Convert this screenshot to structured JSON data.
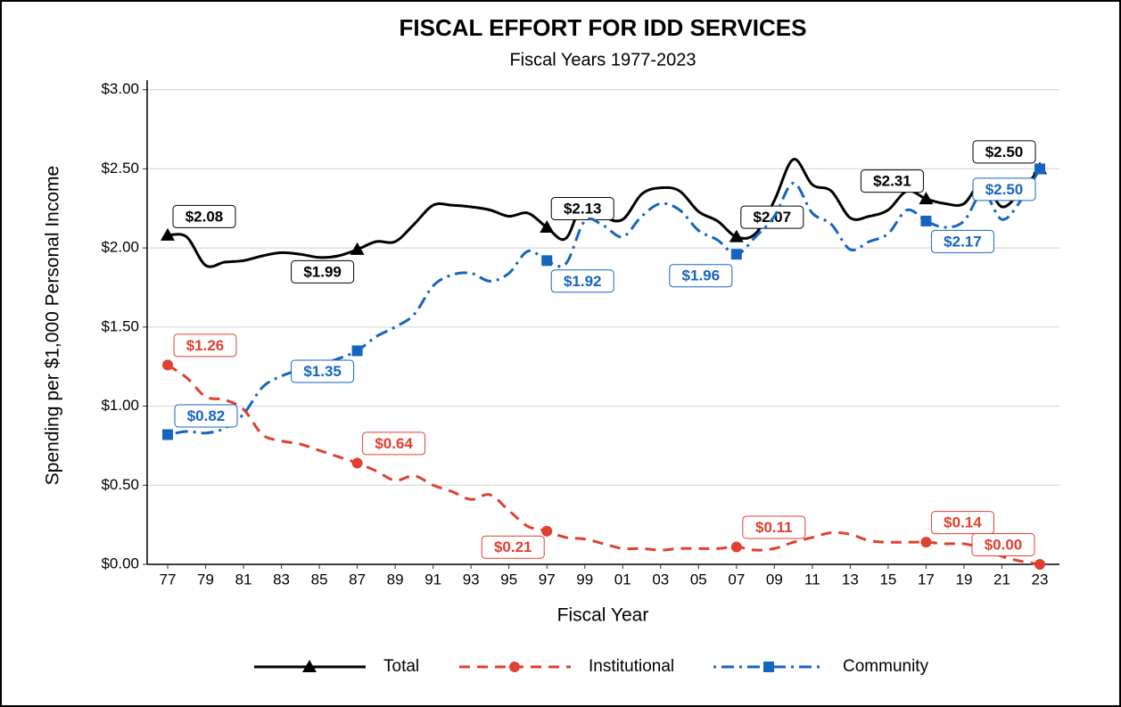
{
  "chart_data": {
    "type": "line",
    "title": "FISCAL EFFORT FOR IDD SERVICES",
    "subtitle": "Fiscal Years 1977-2023",
    "x_label": "Fiscal Year",
    "y_label": "Spending per $1,000 Personal Income",
    "categories": [
      "77",
      null,
      "79",
      null,
      "81",
      null,
      "83",
      null,
      "85",
      null,
      "87",
      null,
      "89",
      null,
      "91",
      null,
      "93",
      null,
      "95",
      null,
      "97",
      null,
      "99",
      null,
      "01",
      null,
      "03",
      null,
      "05",
      null,
      "07",
      null,
      "09",
      null,
      "11",
      null,
      "13",
      null,
      "15",
      null,
      "17",
      null,
      "19",
      null,
      "21",
      null,
      "23"
    ],
    "ylim": [
      0,
      3.06
    ],
    "yticks": [
      {
        "value": 0,
        "label": "$0.00"
      },
      {
        "value": 0.5,
        "label": "$0.50"
      },
      {
        "value": 1,
        "label": "$1.00"
      },
      {
        "value": 1.5,
        "label": "$1.50"
      },
      {
        "value": 2,
        "label": "$2.00"
      },
      {
        "value": 2.5,
        "label": "$2.50"
      },
      {
        "value": 3,
        "label": "$3.00"
      }
    ],
    "grid": true,
    "legend": "bottom",
    "series": [
      {
        "name": "Total",
        "color": "#000000",
        "line_style": "solid",
        "marker": "triangle",
        "values": [
          2.08,
          2.07,
          1.89,
          1.91,
          1.92,
          1.95,
          1.97,
          1.96,
          1.94,
          1.95,
          1.99,
          2.04,
          2.04,
          2.15,
          2.27,
          2.27,
          2.26,
          2.24,
          2.2,
          2.22,
          2.13,
          2.06,
          2.31,
          2.2,
          2.18,
          2.34,
          2.38,
          2.36,
          2.23,
          2.17,
          2.07,
          2.09,
          2.3,
          2.56,
          2.4,
          2.36,
          2.19,
          2.2,
          2.24,
          2.36,
          2.31,
          2.28,
          2.28,
          2.42,
          2.26,
          2.36,
          2.5
        ],
        "value_labels": [
          "$2.08",
          null,
          null,
          null,
          null,
          null,
          null,
          null,
          null,
          null,
          "$1.99",
          null,
          null,
          null,
          null,
          null,
          null,
          null,
          null,
          null,
          "$2.13",
          null,
          null,
          null,
          null,
          null,
          null,
          null,
          null,
          null,
          "$2.07",
          null,
          null,
          null,
          null,
          null,
          null,
          null,
          null,
          null,
          "$2.31",
          null,
          null,
          null,
          null,
          null,
          "$2.50"
        ]
      },
      {
        "name": "Institutional",
        "color": "#e0402f",
        "line_style": "dashed",
        "marker": "circle",
        "values": [
          1.26,
          1.18,
          1.06,
          1.04,
          0.98,
          0.82,
          0.78,
          0.76,
          0.72,
          0.68,
          0.64,
          0.59,
          0.53,
          0.56,
          0.5,
          0.46,
          0.41,
          0.44,
          0.34,
          0.24,
          0.21,
          0.17,
          0.16,
          0.13,
          0.1,
          0.1,
          0.09,
          0.1,
          0.1,
          0.1,
          0.11,
          0.09,
          0.1,
          0.14,
          0.17,
          0.2,
          0.19,
          0.15,
          0.14,
          0.14,
          0.14,
          0.13,
          0.13,
          0.1,
          0.05,
          0.02,
          0.0
        ],
        "value_labels": [
          "$1.26",
          null,
          null,
          null,
          null,
          null,
          null,
          null,
          null,
          null,
          "$0.64",
          null,
          null,
          null,
          null,
          null,
          null,
          null,
          null,
          null,
          "$0.21",
          null,
          null,
          null,
          null,
          null,
          null,
          null,
          null,
          null,
          "$0.11",
          null,
          null,
          null,
          null,
          null,
          null,
          null,
          null,
          null,
          "$0.14",
          null,
          null,
          null,
          null,
          null,
          "$0.00"
        ]
      },
      {
        "name": "Community",
        "color": "#1565c0",
        "line_style": "dotdash",
        "marker": "square",
        "values": [
          0.82,
          0.84,
          0.83,
          0.86,
          0.95,
          1.12,
          1.19,
          1.23,
          1.26,
          1.3,
          1.35,
          1.44,
          1.5,
          1.58,
          1.76,
          1.83,
          1.84,
          1.79,
          1.84,
          1.98,
          1.92,
          1.9,
          2.17,
          2.14,
          2.07,
          2.2,
          2.28,
          2.24,
          2.11,
          2.05,
          1.96,
          2.07,
          2.2,
          2.41,
          2.22,
          2.15,
          1.99,
          2.04,
          2.09,
          2.24,
          2.17,
          2.13,
          2.17,
          2.35,
          2.18,
          2.3,
          2.5
        ],
        "value_labels": [
          "$0.82",
          null,
          null,
          null,
          null,
          null,
          null,
          null,
          null,
          null,
          "$1.35",
          null,
          null,
          null,
          null,
          null,
          null,
          null,
          null,
          null,
          "$1.92",
          null,
          null,
          null,
          null,
          null,
          null,
          null,
          null,
          null,
          "$1.96",
          null,
          null,
          null,
          null,
          null,
          null,
          null,
          null,
          null,
          "$2.17",
          null,
          null,
          null,
          null,
          null,
          "$2.50"
        ]
      }
    ]
  }
}
